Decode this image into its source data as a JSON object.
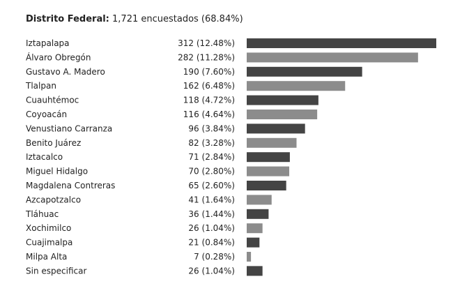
{
  "chart_data": {
    "type": "bar",
    "orientation": "horizontal",
    "title": "Distrito Federal:",
    "subtitle": "1,721 encuestados (68.84%)",
    "categories": [
      "Iztapalapa",
      "Álvaro Obregón",
      "Gustavo A. Madero",
      "Tlalpan",
      "Cuauhtémoc",
      "Coyoacán",
      "Venustiano Carranza",
      "Benito Juárez",
      "Iztacalco",
      "Miguel Hidalgo",
      "Magdalena Contreras",
      "Azcapotzalco",
      "Tláhuac",
      "Xochimilco",
      "Cuajimalpa",
      "Milpa Alta",
      "Sin especificar"
    ],
    "values": [
      312,
      282,
      190,
      162,
      118,
      116,
      96,
      82,
      71,
      70,
      65,
      41,
      36,
      26,
      21,
      7,
      26
    ],
    "value_labels": [
      "312 (12.48%)",
      "282 (11.28%)",
      "190 (7.60%)",
      "162 (6.48%)",
      "118 (4.72%)",
      "116 (4.64%)",
      "96 (3.84%)",
      "82 (3.28%)",
      "71 (2.84%)",
      "70 (2.80%)",
      "65 (2.60%)",
      "41 (1.64%)",
      "36 (1.44%)",
      "26 (1.04%)",
      "21 (0.84%)",
      "7 (0.28%)",
      "26 (1.04%)"
    ],
    "xlim": [
      0,
      312
    ],
    "colors": {
      "dark": "#444444",
      "light": "#8c8c8c"
    },
    "xlabel": "",
    "ylabel": "",
    "grid": false,
    "legend": "none"
  }
}
